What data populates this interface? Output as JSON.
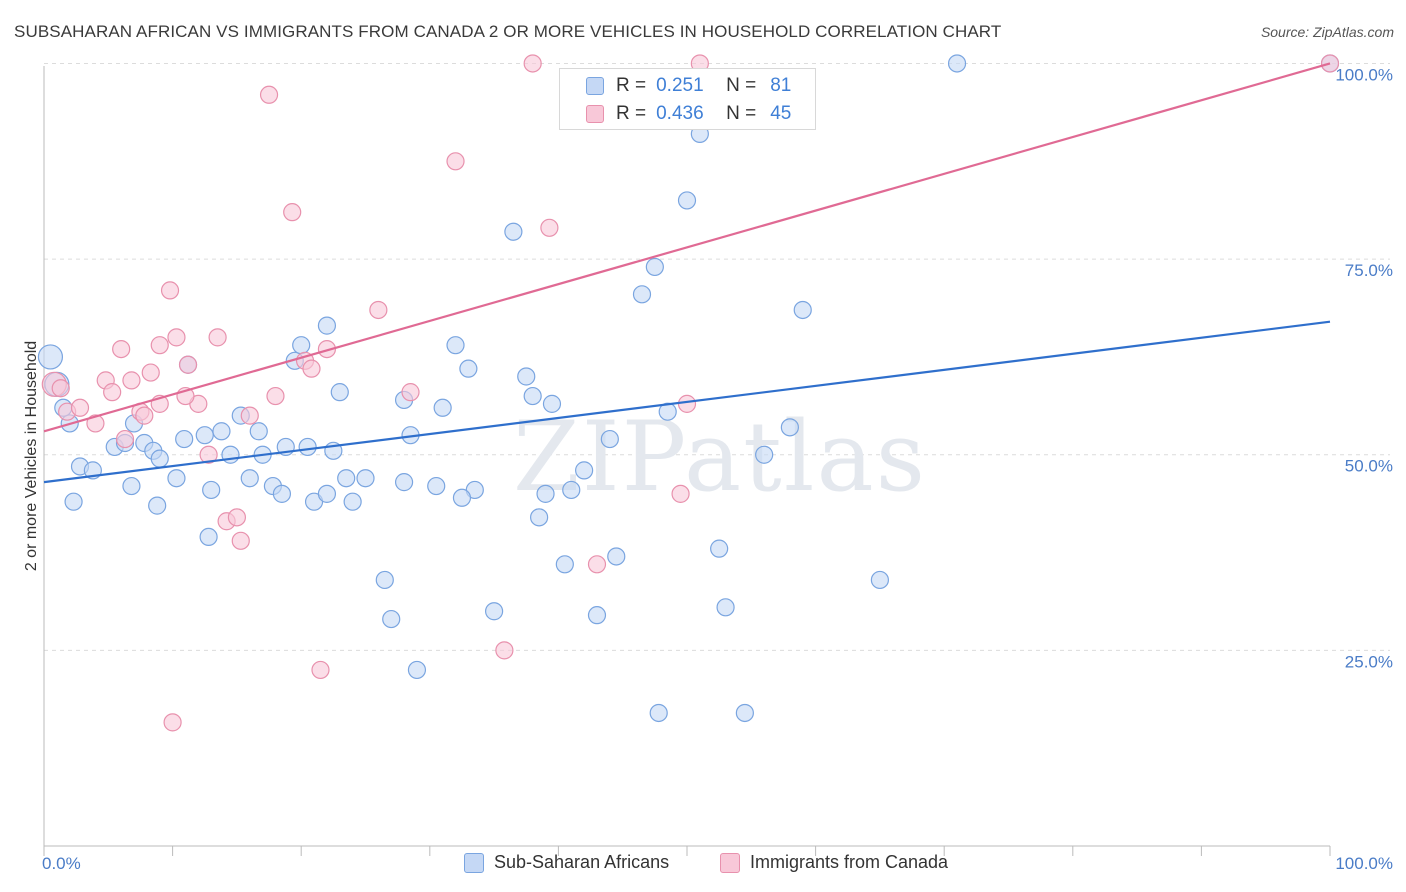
{
  "header": {
    "title": "SUBSAHARAN AFRICAN VS IMMIGRANTS FROM CANADA 2 OR MORE VEHICLES IN HOUSEHOLD CORRELATION CHART",
    "source": "Source: ZipAtlas.com"
  },
  "watermark": "ZIPatlas",
  "legend_top": {
    "rows": [
      {
        "r_label": "R =",
        "r_value": "0.251",
        "n_label": "N =",
        "n_value": "81"
      },
      {
        "r_label": "R =",
        "r_value": "0.436",
        "n_label": "N =",
        "n_value": "45"
      }
    ]
  },
  "chart_data": {
    "type": "scatter",
    "ylabel": "2 or more Vehicles in Household",
    "xlabel": "",
    "xlim": [
      0,
      100
    ],
    "ylim": [
      0,
      103
    ],
    "x_tick_labels": [
      "0.0%",
      "100.0%"
    ],
    "y_ticks": [
      25,
      50,
      75,
      100
    ],
    "y_tick_labels": [
      "25.0%",
      "50.0%",
      "75.0%",
      "100.0%"
    ],
    "grid": "horizontal dashed",
    "legend_position": "bottom",
    "colors": {
      "blue_fill": "#c5d8f5",
      "blue_stroke": "#7aa5e0",
      "blue_line": "#2f6fcc",
      "pink_fill": "#f8c8d8",
      "pink_stroke": "#e891ad",
      "pink_line": "#e06a94",
      "tick_color": "#4a7cc7"
    },
    "series": [
      {
        "name": "Sub-Saharan Africans",
        "trend": [
          [
            0,
            46.5
          ],
          [
            100,
            67
          ]
        ],
        "points": [
          [
            0.5,
            62.5
          ],
          [
            1.0,
            59
          ],
          [
            1.5,
            56
          ],
          [
            2.0,
            54
          ],
          [
            2.3,
            44
          ],
          [
            2.8,
            48.5
          ],
          [
            3.8,
            48
          ],
          [
            5.5,
            51
          ],
          [
            6.3,
            51.5
          ],
          [
            6.8,
            46
          ],
          [
            7.0,
            54
          ],
          [
            7.8,
            51.5
          ],
          [
            8.5,
            50.5
          ],
          [
            9.0,
            49.5
          ],
          [
            8.8,
            43.5
          ],
          [
            10.3,
            47
          ],
          [
            10.9,
            52
          ],
          [
            11.2,
            61.5
          ],
          [
            12.5,
            52.5
          ],
          [
            13.0,
            45.5
          ],
          [
            13.8,
            53
          ],
          [
            14.5,
            50
          ],
          [
            15.3,
            55
          ],
          [
            16.0,
            47
          ],
          [
            16.7,
            53
          ],
          [
            17.0,
            50
          ],
          [
            17.8,
            46
          ],
          [
            18.5,
            45
          ],
          [
            18.8,
            51
          ],
          [
            19.5,
            62
          ],
          [
            20.0,
            64
          ],
          [
            20.5,
            51
          ],
          [
            21.0,
            44
          ],
          [
            22.0,
            45
          ],
          [
            22.5,
            50.5
          ],
          [
            23.0,
            58
          ],
          [
            23.5,
            47
          ],
          [
            24.0,
            44
          ],
          [
            25.0,
            47
          ],
          [
            26.5,
            34
          ],
          [
            27.0,
            29
          ],
          [
            28.0,
            57
          ],
          [
            28.5,
            52.5
          ],
          [
            29.0,
            22.5
          ],
          [
            30.5,
            46
          ],
          [
            31.0,
            56
          ],
          [
            32.0,
            64
          ],
          [
            33.0,
            61
          ],
          [
            33.5,
            45.5
          ],
          [
            35.0,
            30
          ],
          [
            36.5,
            78.5
          ],
          [
            37.5,
            60
          ],
          [
            38.0,
            57.5
          ],
          [
            38.5,
            42
          ],
          [
            39.5,
            56.5
          ],
          [
            40.5,
            36
          ],
          [
            41.0,
            45.5
          ],
          [
            42.0,
            48
          ],
          [
            43.0,
            29.5
          ],
          [
            44.0,
            52
          ],
          [
            44.5,
            37
          ],
          [
            47.5,
            74
          ],
          [
            47.8,
            17
          ],
          [
            48.5,
            55.5
          ],
          [
            50.0,
            82.5
          ],
          [
            51.0,
            91
          ],
          [
            52.5,
            38
          ],
          [
            53.0,
            30.5
          ],
          [
            54.5,
            17
          ],
          [
            56.0,
            50
          ],
          [
            58.0,
            53.5
          ],
          [
            59.0,
            68.5
          ],
          [
            65.0,
            34
          ],
          [
            71.0,
            100
          ],
          [
            100.0,
            100
          ],
          [
            46.5,
            70.5
          ],
          [
            32.5,
            44.5
          ],
          [
            12.8,
            39.5
          ],
          [
            22.0,
            66.5
          ],
          [
            28.0,
            46.5
          ],
          [
            39.0,
            45
          ]
        ]
      },
      {
        "name": "Immigrants from Canada",
        "trend": [
          [
            0,
            53
          ],
          [
            100,
            100
          ]
        ],
        "points": [
          [
            0.8,
            59
          ],
          [
            1.3,
            58.5
          ],
          [
            1.8,
            55.5
          ],
          [
            2.8,
            56
          ],
          [
            4.0,
            54
          ],
          [
            4.8,
            59.5
          ],
          [
            5.3,
            58
          ],
          [
            6.0,
            63.5
          ],
          [
            6.3,
            52
          ],
          [
            6.8,
            59.5
          ],
          [
            7.5,
            55.5
          ],
          [
            8.3,
            60.5
          ],
          [
            9.0,
            56.5
          ],
          [
            9.8,
            71
          ],
          [
            10.3,
            65
          ],
          [
            11.2,
            61.5
          ],
          [
            12.0,
            56.5
          ],
          [
            12.8,
            50
          ],
          [
            13.5,
            65
          ],
          [
            14.2,
            41.5
          ],
          [
            15.0,
            42
          ],
          [
            15.3,
            39
          ],
          [
            16.0,
            55
          ],
          [
            17.5,
            96
          ],
          [
            18.0,
            57.5
          ],
          [
            19.3,
            81
          ],
          [
            20.3,
            62
          ],
          [
            20.8,
            61
          ],
          [
            21.5,
            22.5
          ],
          [
            22.0,
            63.5
          ],
          [
            26.0,
            68.5
          ],
          [
            28.5,
            58
          ],
          [
            32.0,
            87.5
          ],
          [
            35.8,
            25
          ],
          [
            38.0,
            100
          ],
          [
            39.3,
            79
          ],
          [
            43.0,
            36
          ],
          [
            49.5,
            45
          ],
          [
            50.0,
            56.5
          ],
          [
            51.0,
            100
          ],
          [
            100.0,
            100
          ],
          [
            10.0,
            15.8
          ],
          [
            11.0,
            57.5
          ],
          [
            9.0,
            64
          ],
          [
            7.8,
            55
          ]
        ]
      }
    ]
  },
  "legend_bottom": {
    "items": [
      {
        "label": "Sub-Saharan Africans"
      },
      {
        "label": "Immigrants from Canada"
      }
    ]
  }
}
